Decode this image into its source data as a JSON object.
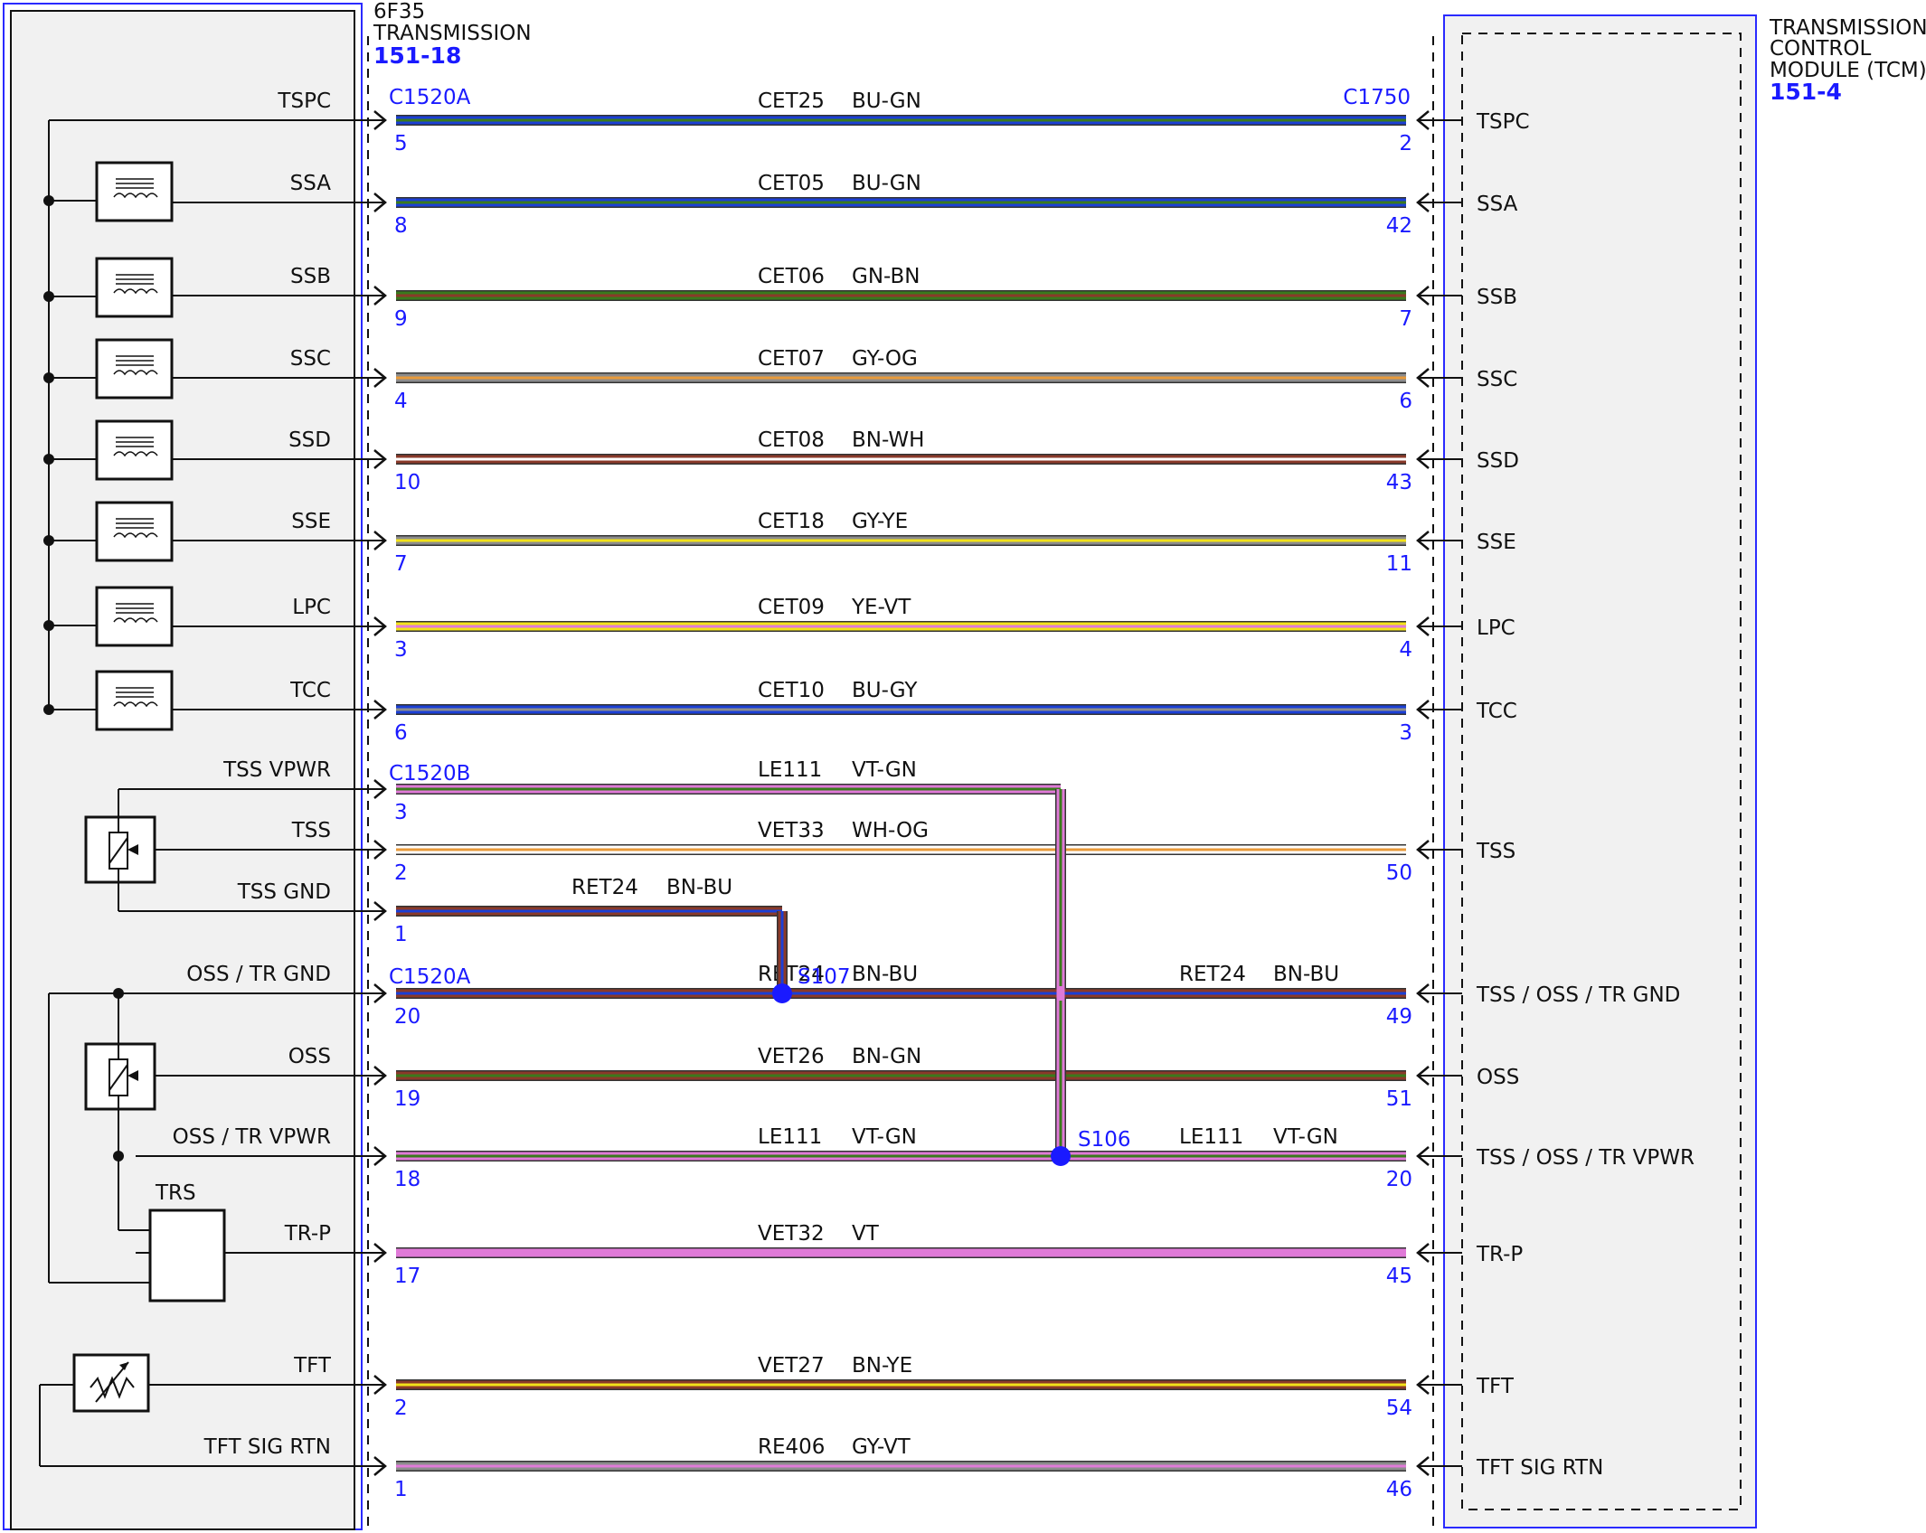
{
  "colors": {
    "link": "#1a1aff",
    "BU": "#1b3fd6",
    "GN": "#3a7a1c",
    "GY": "#8c8c8c",
    "OG": "#e89a3a",
    "BN": "#8a3a2a",
    "WH": "#ffffff",
    "YE": "#f2e21a",
    "VT": "#e07ad8"
  },
  "left_component": {
    "name": "6F35",
    "desc": "TRANSMISSION",
    "ref": "151-18",
    "trs_label": "TRS"
  },
  "right_component": {
    "name": "TRANSMISSION",
    "line2": "CONTROL",
    "line3": "MODULE (TCM)",
    "ref": "151-4"
  },
  "connectors": {
    "c1520a_top": "C1520A",
    "c1520b": "C1520B",
    "c1520a_mid": "C1520A",
    "c1750": "C1750"
  },
  "splices": {
    "s107": "S107",
    "s106": "S106"
  },
  "wires": [
    {
      "left_label": "TSPC",
      "right_label": "TSPC",
      "circuit": "CET25",
      "color": "BU-GN",
      "left_pin": "5",
      "right_pin": "2"
    },
    {
      "left_label": "SSA",
      "right_label": "SSA",
      "circuit": "CET05",
      "color": "BU-GN",
      "left_pin": "8",
      "right_pin": "42"
    },
    {
      "left_label": "SSB",
      "right_label": "SSB",
      "circuit": "CET06",
      "color": "GN-BN",
      "left_pin": "9",
      "right_pin": "7"
    },
    {
      "left_label": "SSC",
      "right_label": "SSC",
      "circuit": "CET07",
      "color": "GY-OG",
      "left_pin": "4",
      "right_pin": "6"
    },
    {
      "left_label": "SSD",
      "right_label": "SSD",
      "circuit": "CET08",
      "color": "BN-WH",
      "left_pin": "10",
      "right_pin": "43"
    },
    {
      "left_label": "SSE",
      "right_label": "SSE",
      "circuit": "CET18",
      "color": "GY-YE",
      "left_pin": "7",
      "right_pin": "11"
    },
    {
      "left_label": "LPC",
      "right_label": "LPC",
      "circuit": "CET09",
      "color": "YE-VT",
      "left_pin": "3",
      "right_pin": "4"
    },
    {
      "left_label": "TCC",
      "right_label": "TCC",
      "circuit": "CET10",
      "color": "BU-GY",
      "left_pin": "6",
      "right_pin": "3"
    },
    {
      "left_label": "TSS VPWR",
      "right_label": "",
      "circuit": "LE111",
      "color": "VT-GN",
      "left_pin": "3",
      "right_pin": ""
    },
    {
      "left_label": "TSS",
      "right_label": "TSS",
      "circuit": "VET33",
      "color": "WH-OG",
      "left_pin": "2",
      "right_pin": "50"
    },
    {
      "left_label": "TSS GND",
      "right_label": "",
      "circuit": "RET24",
      "color": "BN-BU",
      "left_pin": "1",
      "right_pin": ""
    },
    {
      "left_label": "OSS / TR GND",
      "right_label": "TSS / OSS / TR GND",
      "circuit": "RET24",
      "color": "BN-BU",
      "left_pin": "20",
      "right_pin": "49",
      "circuit2": "RET24",
      "color2": "BN-BU"
    },
    {
      "left_label": "OSS",
      "right_label": "OSS",
      "circuit": "VET26",
      "color": "BN-GN",
      "left_pin": "19",
      "right_pin": "51"
    },
    {
      "left_label": "OSS / TR VPWR",
      "right_label": "TSS / OSS / TR VPWR",
      "circuit": "LE111",
      "color": "VT-GN",
      "left_pin": "18",
      "right_pin": "20",
      "circuit2": "LE111",
      "color2": "VT-GN"
    },
    {
      "left_label": "TR-P",
      "right_label": "TR-P",
      "circuit": "VET32",
      "color": "VT",
      "left_pin": "17",
      "right_pin": "45"
    },
    {
      "left_label": "TFT",
      "right_label": "TFT",
      "circuit": "VET27",
      "color": "BN-YE",
      "left_pin": "2",
      "right_pin": "54"
    },
    {
      "left_label": "TFT SIG RTN",
      "right_label": "TFT SIG RTN",
      "circuit": "RE406",
      "color": "GY-VT",
      "left_pin": "1",
      "right_pin": "46"
    }
  ],
  "components": [
    {
      "icon": "solenoid-icon"
    },
    {
      "icon": "sensor-icon"
    },
    {
      "icon": "switch-icon"
    },
    {
      "icon": "thermistor-icon"
    }
  ]
}
